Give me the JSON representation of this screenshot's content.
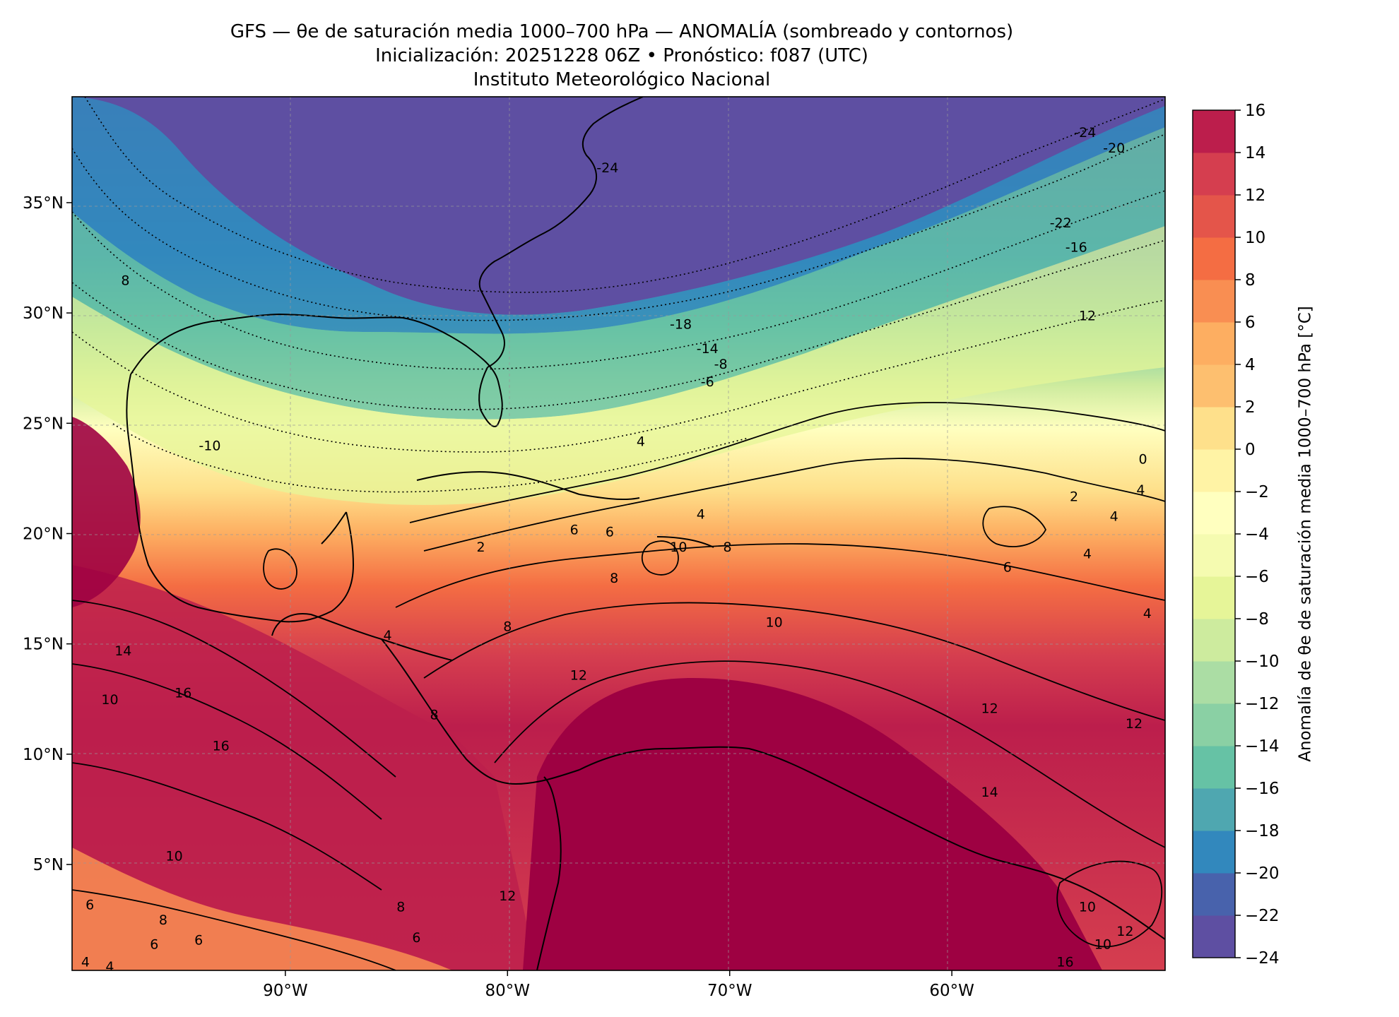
{
  "title": {
    "line1": "GFS — θe de saturación media 1000–700 hPa — ANOMALÍA (sombreado y contornos)",
    "line2": "Inicialización: 20251228 06Z   •   Pronóstico: f087 (UTC)",
    "line3": "Instituto Meteorológico Nacional"
  },
  "map": {
    "extent": {
      "lon_min": -99.6,
      "lon_max": -50.4,
      "lat_min": 0.2,
      "lat_max": 39.8
    },
    "lon_ticks": [
      {
        "value": -90,
        "label": "90°W"
      },
      {
        "value": -80,
        "label": "80°W"
      },
      {
        "value": -70,
        "label": "70°W"
      },
      {
        "value": -60,
        "label": "60°W"
      }
    ],
    "lat_ticks": [
      {
        "value": 35,
        "label": "35°N"
      },
      {
        "value": 30,
        "label": "30°N"
      },
      {
        "value": 25,
        "label": "25°N"
      },
      {
        "value": 20,
        "label": "20°N"
      },
      {
        "value": 15,
        "label": "15°N"
      },
      {
        "value": 10,
        "label": "10°N"
      },
      {
        "value": 5,
        "label": "5°N"
      }
    ],
    "gridlines": true,
    "contour_labels": [
      {
        "lon": -75.5,
        "lat": 36.6,
        "text": "-24"
      },
      {
        "lon": -52.7,
        "lat": 37.5,
        "text": "-20"
      },
      {
        "lon": -54.0,
        "lat": 38.2,
        "text": "-24"
      },
      {
        "lon": -55.1,
        "lat": 34.1,
        "text": "-22"
      },
      {
        "lon": -54.4,
        "lat": 33.0,
        "text": "-16"
      },
      {
        "lon": -72.2,
        "lat": 29.5,
        "text": "-18"
      },
      {
        "lon": -71.0,
        "lat": 28.4,
        "text": "-14"
      },
      {
        "lon": -70.4,
        "lat": 27.7,
        "text": "-8"
      },
      {
        "lon": -71.0,
        "lat": 26.9,
        "text": "-6"
      },
      {
        "lon": -53.9,
        "lat": 29.9,
        "text": "12"
      },
      {
        "lon": -93.4,
        "lat": 24.0,
        "text": "-10"
      },
      {
        "lon": -97.2,
        "lat": 31.5,
        "text": "8"
      },
      {
        "lon": -74.0,
        "lat": 24.2,
        "text": "4"
      },
      {
        "lon": -51.4,
        "lat": 23.4,
        "text": "0"
      },
      {
        "lon": -71.3,
        "lat": 20.9,
        "text": "4"
      },
      {
        "lon": -54.5,
        "lat": 21.7,
        "text": "2"
      },
      {
        "lon": -51.5,
        "lat": 22.0,
        "text": "4"
      },
      {
        "lon": -52.7,
        "lat": 20.8,
        "text": "4"
      },
      {
        "lon": -53.9,
        "lat": 19.1,
        "text": "4"
      },
      {
        "lon": -57.5,
        "lat": 18.5,
        "text": "6"
      },
      {
        "lon": -81.2,
        "lat": 19.4,
        "text": "2"
      },
      {
        "lon": -77.0,
        "lat": 20.2,
        "text": "6"
      },
      {
        "lon": -75.4,
        "lat": 20.1,
        "text": "6"
      },
      {
        "lon": -72.3,
        "lat": 19.4,
        "text": "10"
      },
      {
        "lon": -70.1,
        "lat": 19.4,
        "text": "8"
      },
      {
        "lon": -75.2,
        "lat": 18.0,
        "text": "8"
      },
      {
        "lon": -68.0,
        "lat": 16.0,
        "text": "10"
      },
      {
        "lon": -80.0,
        "lat": 15.8,
        "text": "8"
      },
      {
        "lon": -85.4,
        "lat": 15.4,
        "text": "4"
      },
      {
        "lon": -51.2,
        "lat": 16.4,
        "text": "4"
      },
      {
        "lon": -97.3,
        "lat": 14.7,
        "text": "14"
      },
      {
        "lon": -76.8,
        "lat": 13.6,
        "text": "12"
      },
      {
        "lon": -97.9,
        "lat": 12.5,
        "text": "10"
      },
      {
        "lon": -94.6,
        "lat": 12.8,
        "text": "16"
      },
      {
        "lon": -58.3,
        "lat": 12.1,
        "text": "12"
      },
      {
        "lon": -83.3,
        "lat": 11.8,
        "text": "8"
      },
      {
        "lon": -51.8,
        "lat": 11.4,
        "text": "12"
      },
      {
        "lon": -92.9,
        "lat": 10.4,
        "text": "16"
      },
      {
        "lon": -58.3,
        "lat": 8.3,
        "text": "14"
      },
      {
        "lon": -95.0,
        "lat": 5.4,
        "text": "10"
      },
      {
        "lon": -84.8,
        "lat": 3.1,
        "text": "8"
      },
      {
        "lon": -80.0,
        "lat": 3.6,
        "text": "12"
      },
      {
        "lon": -98.8,
        "lat": 3.2,
        "text": "6"
      },
      {
        "lon": -95.5,
        "lat": 2.5,
        "text": "8"
      },
      {
        "lon": -93.9,
        "lat": 1.6,
        "text": "6"
      },
      {
        "lon": -95.9,
        "lat": 1.4,
        "text": "6"
      },
      {
        "lon": -84.1,
        "lat": 1.7,
        "text": "6"
      },
      {
        "lon": -99.0,
        "lat": 0.6,
        "text": "4"
      },
      {
        "lon": -97.9,
        "lat": 0.4,
        "text": "4"
      },
      {
        "lon": -53.9,
        "lat": 3.1,
        "text": "10"
      },
      {
        "lon": -52.2,
        "lat": 2.0,
        "text": "12"
      },
      {
        "lon": -53.2,
        "lat": 1.4,
        "text": "10"
      },
      {
        "lon": -54.9,
        "lat": 0.6,
        "text": "16"
      }
    ]
  },
  "colorbar": {
    "label": "Anomalía de θe de saturación media 1000–700 hPa [°C]",
    "min": -24,
    "max": 16,
    "step": 2,
    "tick_labels": [
      "16",
      "14",
      "12",
      "10",
      "8",
      "6",
      "4",
      "2",
      "0",
      "−2",
      "−4",
      "−6",
      "−8",
      "−10",
      "−12",
      "−14",
      "−16",
      "−18",
      "−20",
      "−22",
      "−24"
    ],
    "colors": [
      "#5e4fa2",
      "#4862ac",
      "#3288bd",
      "#4fa7b0",
      "#66c2a5",
      "#8ad0a4",
      "#abdda4",
      "#cdeb9e",
      "#e6f598",
      "#f5fbb0",
      "#ffffbf",
      "#fff3a5",
      "#fee08b",
      "#fdbf6f",
      "#fdae61",
      "#f98e52",
      "#f46d43",
      "#e4554a",
      "#d53e4f",
      "#bc1e4c",
      "#9e0142"
    ]
  }
}
